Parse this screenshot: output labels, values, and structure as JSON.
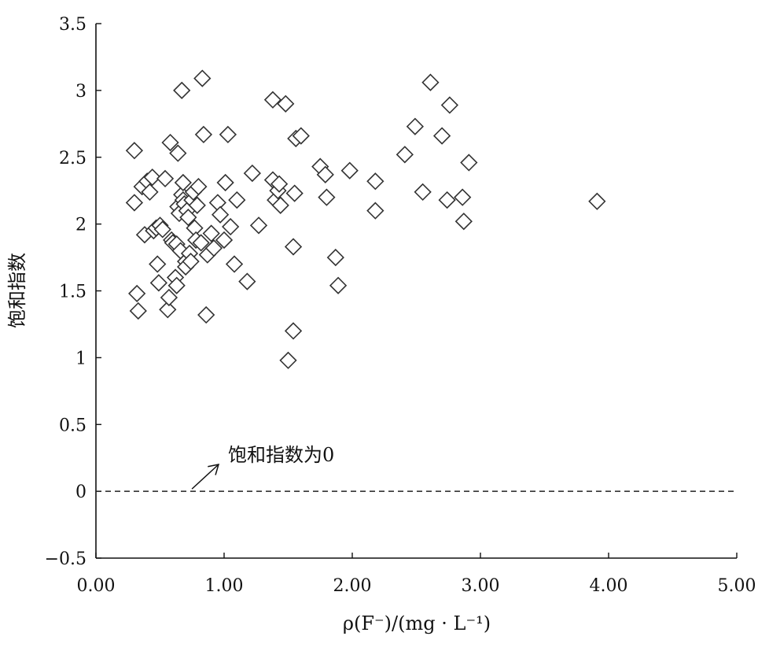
{
  "chart_data": {
    "type": "scatter",
    "xlabel": "ρ(F⁻)/(mg · L⁻¹)",
    "ylabel": "饱和指数",
    "xlim": [
      0,
      5
    ],
    "ylim": [
      -0.5,
      3.5
    ],
    "x_ticks": [
      "0.00",
      "1.00",
      "2.00",
      "3.00",
      "4.00",
      "5.00"
    ],
    "y_ticks": [
      "−0.5",
      "0",
      "0.5",
      "1",
      "1.5",
      "2",
      "2.5",
      "3",
      "3.5"
    ],
    "grid": false,
    "marker": "diamond",
    "reference_line": {
      "y": 0,
      "style": "dashed"
    },
    "annotation": {
      "text": "饱和指数为0",
      "points_to": {
        "x": 0.7,
        "y": 0
      }
    },
    "points": [
      {
        "x": 0.3,
        "y": 2.55
      },
      {
        "x": 0.3,
        "y": 2.16
      },
      {
        "x": 0.32,
        "y": 1.48
      },
      {
        "x": 0.33,
        "y": 1.35
      },
      {
        "x": 0.36,
        "y": 2.28
      },
      {
        "x": 0.38,
        "y": 1.92
      },
      {
        "x": 0.4,
        "y": 2.32
      },
      {
        "x": 0.42,
        "y": 2.24
      },
      {
        "x": 0.44,
        "y": 2.35
      },
      {
        "x": 0.45,
        "y": 1.95
      },
      {
        "x": 0.47,
        "y": 1.97
      },
      {
        "x": 0.48,
        "y": 1.7
      },
      {
        "x": 0.49,
        "y": 1.56
      },
      {
        "x": 0.5,
        "y": 1.99
      },
      {
        "x": 0.52,
        "y": 1.96
      },
      {
        "x": 0.54,
        "y": 2.34
      },
      {
        "x": 0.56,
        "y": 1.36
      },
      {
        "x": 0.57,
        "y": 1.45
      },
      {
        "x": 0.58,
        "y": 2.61
      },
      {
        "x": 0.59,
        "y": 1.88
      },
      {
        "x": 0.6,
        "y": 1.86
      },
      {
        "x": 0.62,
        "y": 1.6
      },
      {
        "x": 0.63,
        "y": 1.54
      },
      {
        "x": 0.63,
        "y": 1.85
      },
      {
        "x": 0.64,
        "y": 2.53
      },
      {
        "x": 0.64,
        "y": 2.13
      },
      {
        "x": 0.65,
        "y": 2.08
      },
      {
        "x": 0.66,
        "y": 1.8
      },
      {
        "x": 0.67,
        "y": 2.22
      },
      {
        "x": 0.67,
        "y": 3.0
      },
      {
        "x": 0.68,
        "y": 2.31
      },
      {
        "x": 0.68,
        "y": 2.18
      },
      {
        "x": 0.69,
        "y": 2.15
      },
      {
        "x": 0.7,
        "y": 1.72
      },
      {
        "x": 0.7,
        "y": 1.68
      },
      {
        "x": 0.71,
        "y": 2.1
      },
      {
        "x": 0.72,
        "y": 2.05
      },
      {
        "x": 0.73,
        "y": 1.78
      },
      {
        "x": 0.74,
        "y": 1.72
      },
      {
        "x": 0.75,
        "y": 2.18
      },
      {
        "x": 0.76,
        "y": 2.24
      },
      {
        "x": 0.77,
        "y": 1.97
      },
      {
        "x": 0.78,
        "y": 1.88
      },
      {
        "x": 0.79,
        "y": 2.14
      },
      {
        "x": 0.8,
        "y": 2.28
      },
      {
        "x": 0.82,
        "y": 1.86
      },
      {
        "x": 0.83,
        "y": 3.09
      },
      {
        "x": 0.84,
        "y": 2.67
      },
      {
        "x": 0.86,
        "y": 1.32
      },
      {
        "x": 0.87,
        "y": 1.77
      },
      {
        "x": 0.9,
        "y": 1.93
      },
      {
        "x": 0.92,
        "y": 1.82
      },
      {
        "x": 0.95,
        "y": 2.16
      },
      {
        "x": 0.97,
        "y": 2.07
      },
      {
        "x": 1.0,
        "y": 1.88
      },
      {
        "x": 1.01,
        "y": 2.31
      },
      {
        "x": 1.03,
        "y": 2.67
      },
      {
        "x": 1.05,
        "y": 1.98
      },
      {
        "x": 1.08,
        "y": 1.7
      },
      {
        "x": 1.1,
        "y": 2.18
      },
      {
        "x": 1.18,
        "y": 1.57
      },
      {
        "x": 1.22,
        "y": 2.38
      },
      {
        "x": 1.27,
        "y": 1.99
      },
      {
        "x": 1.38,
        "y": 2.93
      },
      {
        "x": 1.38,
        "y": 2.33
      },
      {
        "x": 1.4,
        "y": 2.18
      },
      {
        "x": 1.42,
        "y": 2.25
      },
      {
        "x": 1.43,
        "y": 2.3
      },
      {
        "x": 1.44,
        "y": 2.14
      },
      {
        "x": 1.48,
        "y": 2.9
      },
      {
        "x": 1.5,
        "y": 0.98
      },
      {
        "x": 1.54,
        "y": 1.2
      },
      {
        "x": 1.54,
        "y": 1.83
      },
      {
        "x": 1.55,
        "y": 2.23
      },
      {
        "x": 1.56,
        "y": 2.64
      },
      {
        "x": 1.6,
        "y": 2.66
      },
      {
        "x": 1.75,
        "y": 2.43
      },
      {
        "x": 1.79,
        "y": 2.37
      },
      {
        "x": 1.8,
        "y": 2.2
      },
      {
        "x": 1.87,
        "y": 1.75
      },
      {
        "x": 1.89,
        "y": 1.54
      },
      {
        "x": 1.98,
        "y": 2.4
      },
      {
        "x": 2.18,
        "y": 2.32
      },
      {
        "x": 2.18,
        "y": 2.1
      },
      {
        "x": 2.41,
        "y": 2.52
      },
      {
        "x": 2.49,
        "y": 2.73
      },
      {
        "x": 2.55,
        "y": 2.24
      },
      {
        "x": 2.61,
        "y": 3.06
      },
      {
        "x": 2.7,
        "y": 2.66
      },
      {
        "x": 2.74,
        "y": 2.18
      },
      {
        "x": 2.76,
        "y": 2.89
      },
      {
        "x": 2.86,
        "y": 2.2
      },
      {
        "x": 2.87,
        "y": 2.02
      },
      {
        "x": 2.91,
        "y": 2.46
      },
      {
        "x": 3.91,
        "y": 2.17
      }
    ]
  }
}
